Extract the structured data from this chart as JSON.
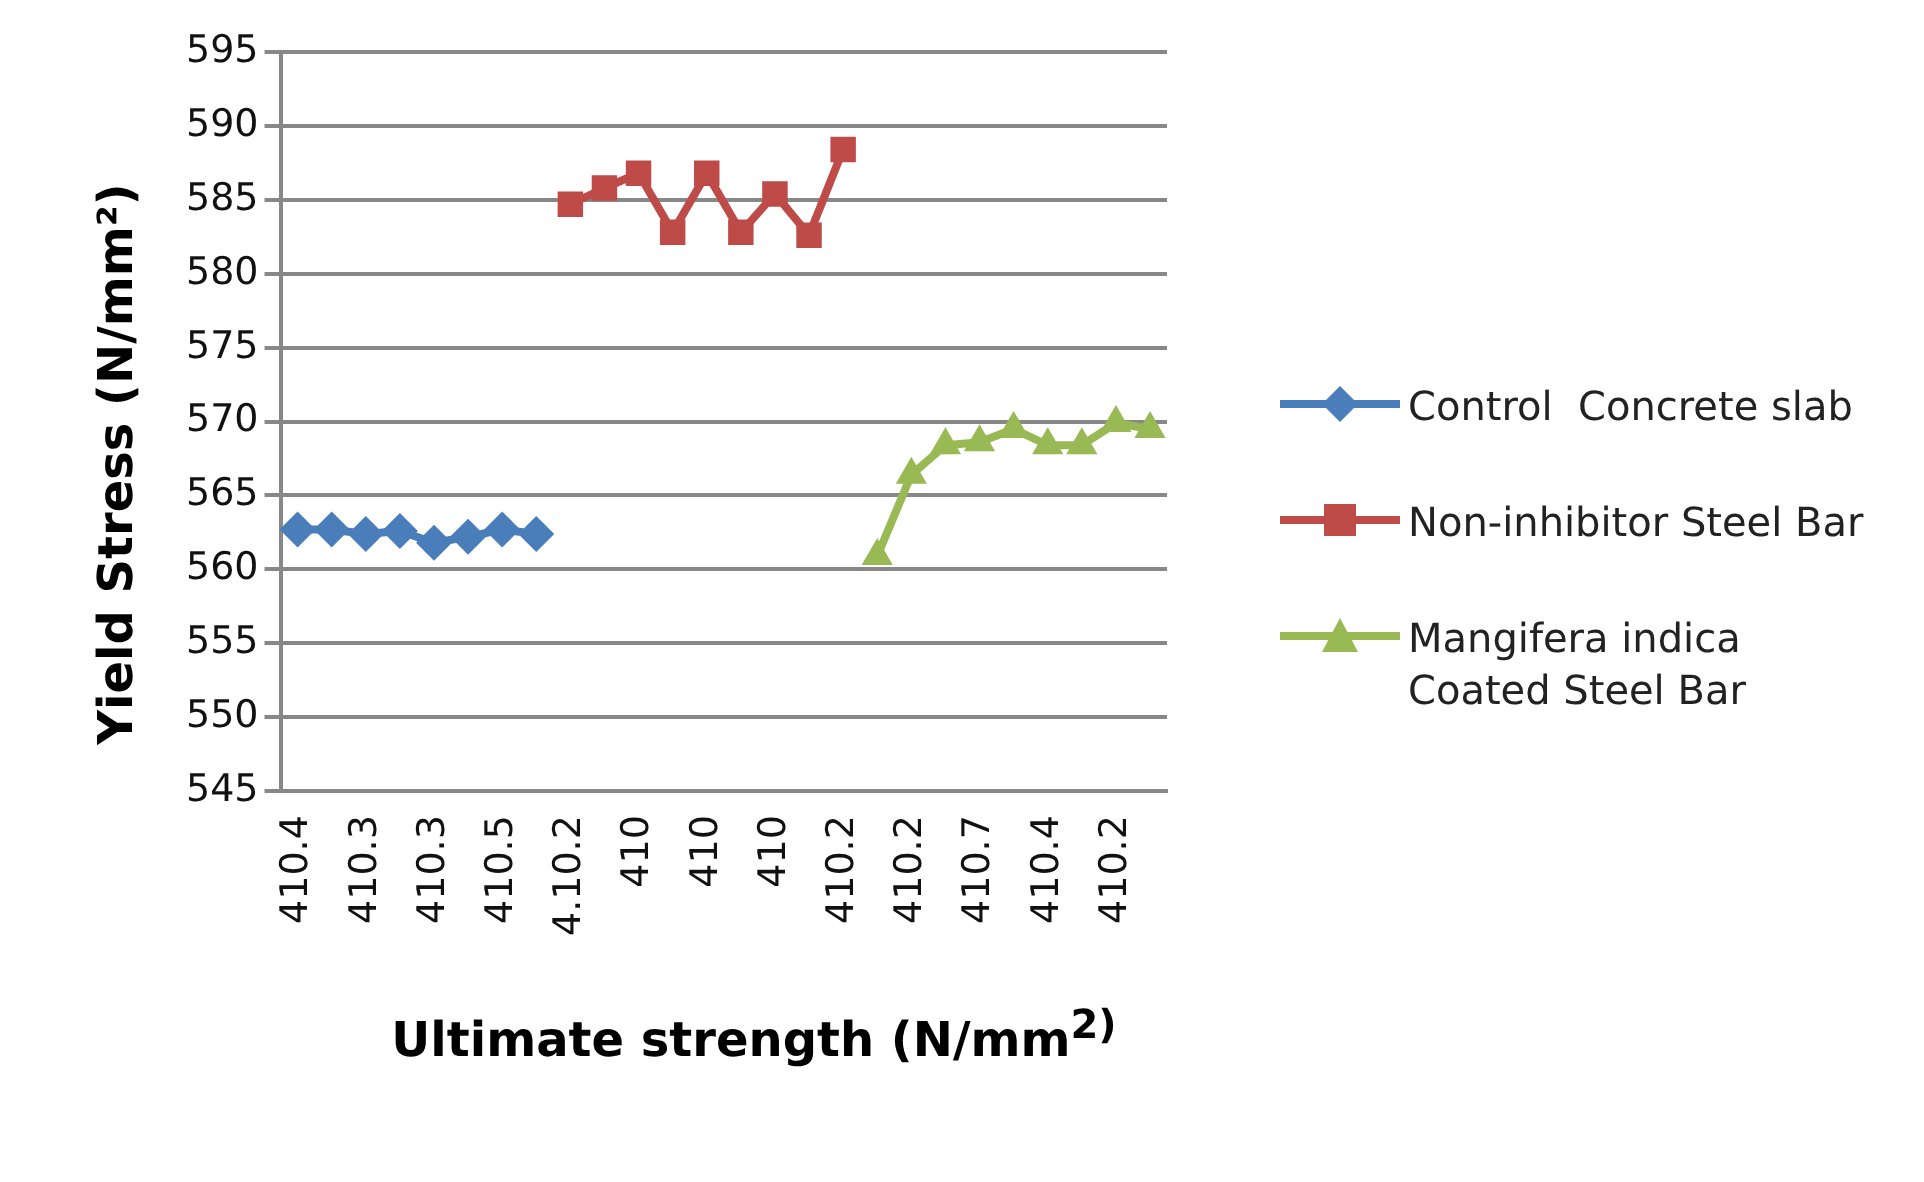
{
  "chart_data": {
    "type": "line",
    "xlabel": "Ultimate strength (N/mm$^{2)}$",
    "ylabel": "Yield Stress (N/mm²)",
    "categories": [
      "410.4",
      null,
      "410.3",
      null,
      "410.3",
      null,
      "410.5",
      null,
      "4.10.2",
      null,
      "410",
      null,
      "410",
      null,
      "410",
      null,
      "410.2",
      null,
      "410.2",
      null,
      "410.7",
      null,
      "410.4",
      null,
      "410.2",
      null
    ],
    "series": [
      {
        "name": "Control  Concrete slab",
        "color": "#4a7ebb",
        "marker": "diamond",
        "values": [
          562.7,
          562.7,
          562.4,
          562.6,
          561.8,
          562.2,
          562.7,
          562.4,
          null,
          null,
          null,
          null,
          null,
          null,
          null,
          null,
          null,
          null,
          null,
          null,
          null,
          null,
          null,
          null,
          null,
          null
        ]
      },
      {
        "name": "Non-inhibitor Steel Bar",
        "color": "#be4b48",
        "marker": "square",
        "values": [
          null,
          null,
          null,
          null,
          null,
          null,
          null,
          null,
          584.7,
          585.8,
          586.8,
          582.8,
          586.8,
          582.8,
          585.4,
          582.6,
          588.4,
          null,
          null,
          null,
          null,
          null,
          null,
          null,
          null,
          null
        ]
      },
      {
        "name": "Mangifera indica Coated Steel Bar",
        "color": "#98b954",
        "marker": "triangle",
        "values": [
          null,
          null,
          null,
          null,
          null,
          null,
          null,
          null,
          null,
          null,
          null,
          null,
          null,
          null,
          null,
          null,
          null,
          560.9,
          566.4,
          568.4,
          568.6,
          569.5,
          568.4,
          568.4,
          569.9,
          569.5
        ]
      }
    ],
    "ylim": [
      545,
      595
    ],
    "yticks": [
      545,
      550,
      555,
      560,
      565,
      570,
      575,
      580,
      585,
      590,
      595
    ],
    "grid": "y",
    "legend": "right"
  }
}
